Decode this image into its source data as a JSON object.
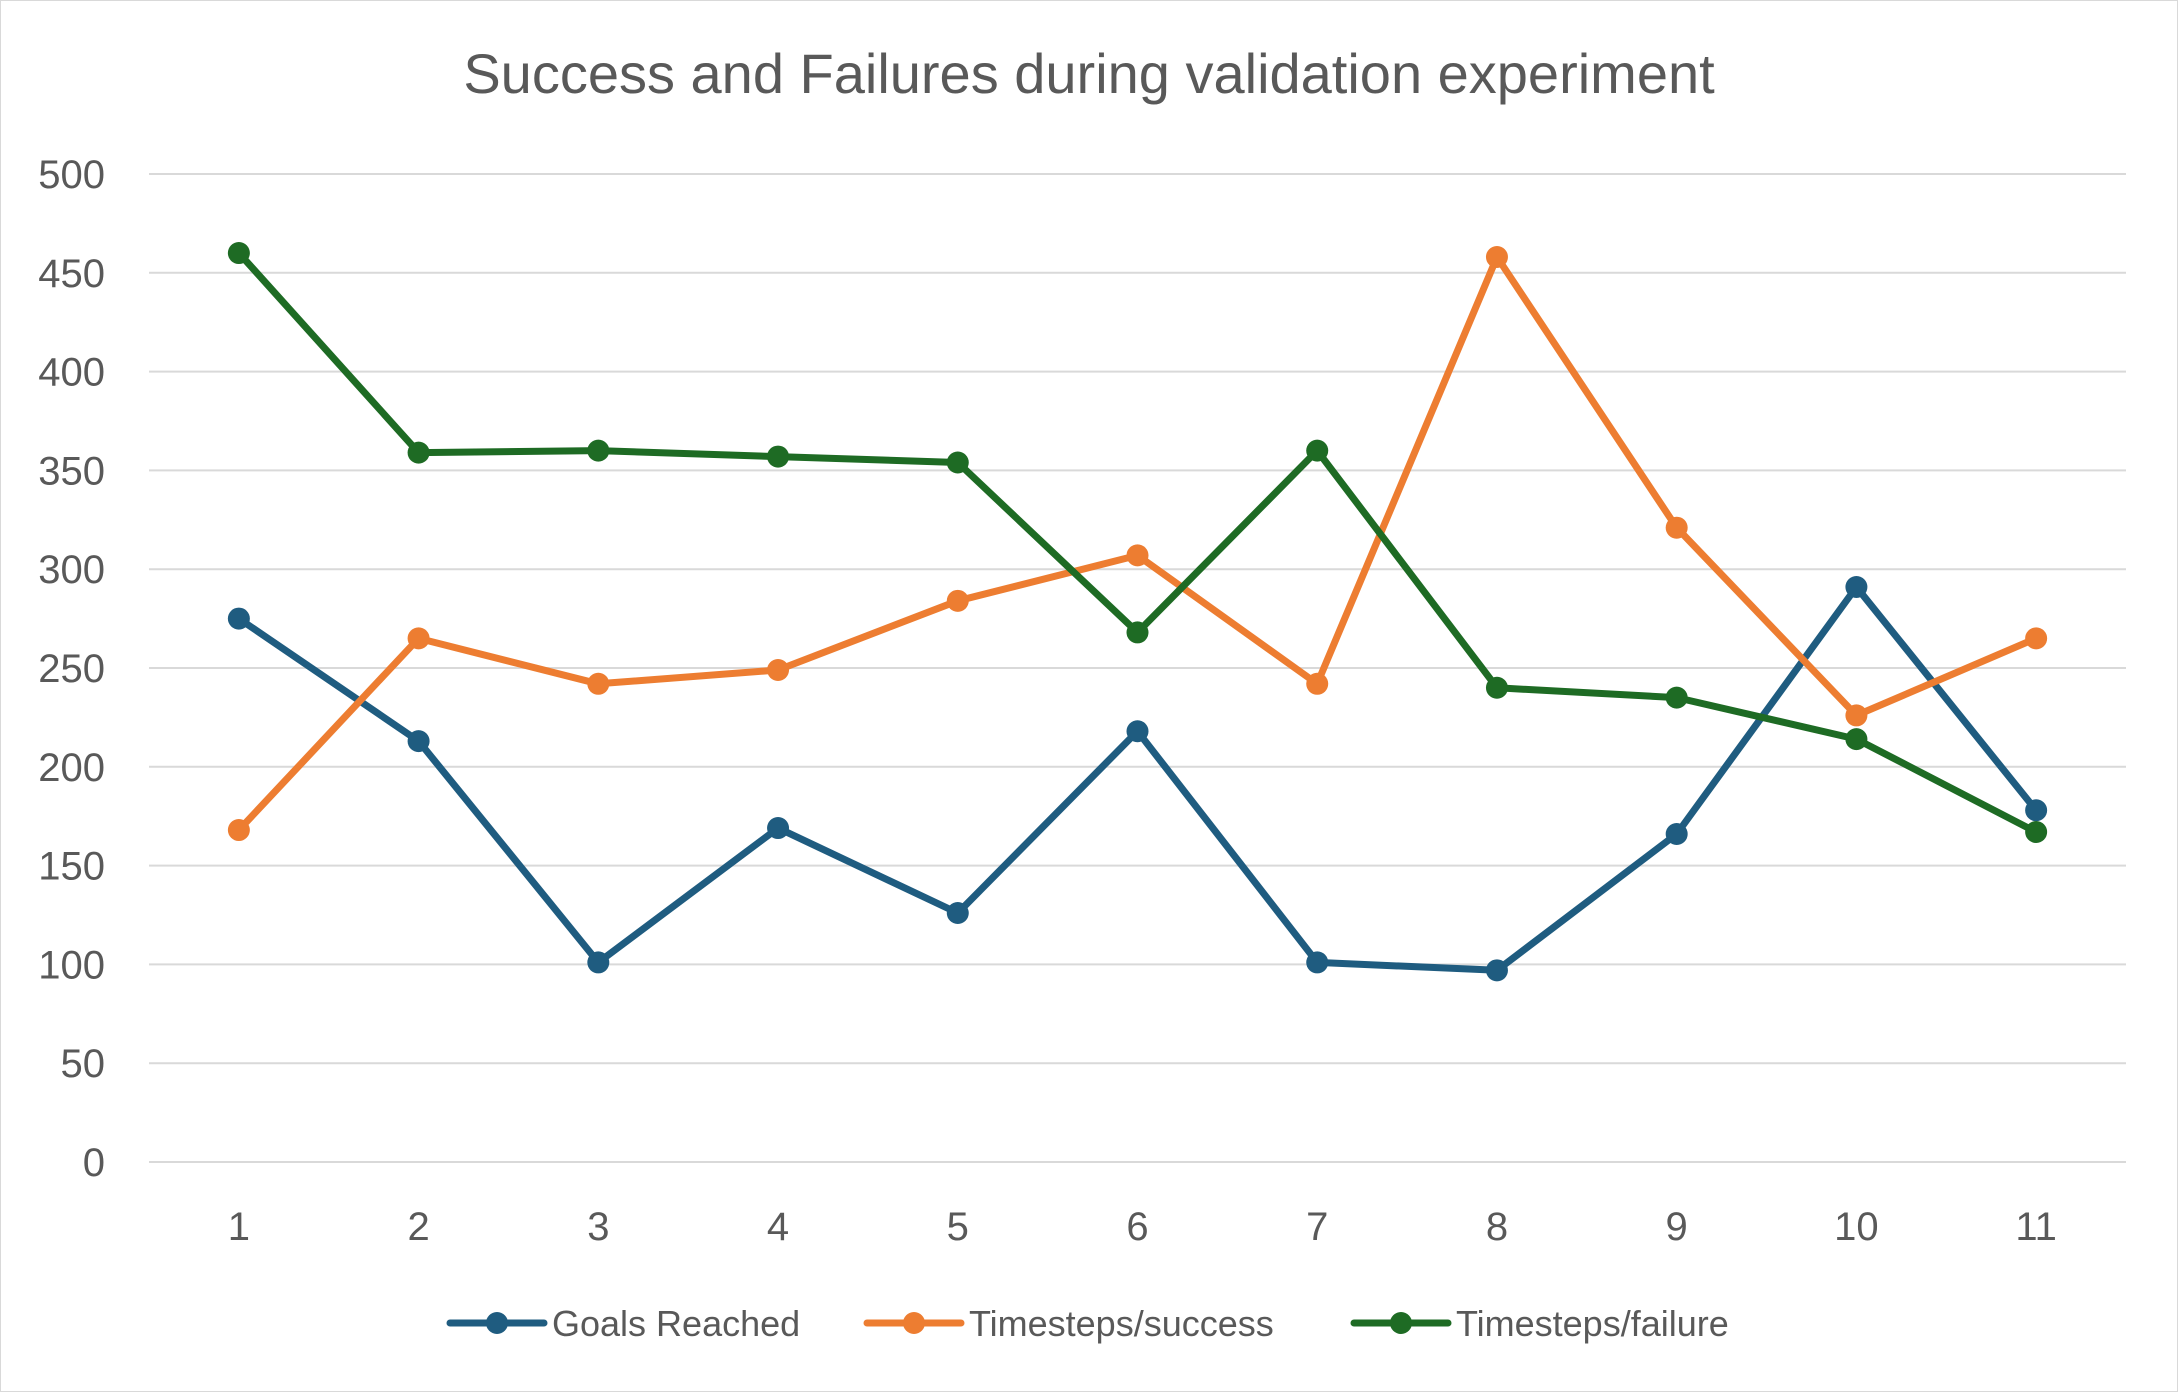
{
  "chart_data": {
    "type": "line",
    "title": "Success and Failures during validation experiment",
    "xlabel": "",
    "ylabel": "",
    "categories": [
      "1",
      "2",
      "3",
      "4",
      "5",
      "6",
      "7",
      "8",
      "9",
      "10",
      "11"
    ],
    "ylim": [
      0,
      500
    ],
    "yticks": [
      0,
      50,
      100,
      150,
      200,
      250,
      300,
      350,
      400,
      450,
      500
    ],
    "grid": true,
    "legend_position": "bottom",
    "series": [
      {
        "name": "Goals Reached",
        "color": "#1f5c80",
        "values": [
          275,
          213,
          101,
          169,
          126,
          218,
          101,
          97,
          166,
          291,
          178
        ]
      },
      {
        "name": "Timesteps/success",
        "color": "#ed7d31",
        "values": [
          168,
          265,
          242,
          249,
          284,
          307,
          242,
          458,
          321,
          226,
          265
        ]
      },
      {
        "name": "Timesteps/failure",
        "color": "#1e6b24",
        "values": [
          460,
          359,
          360,
          357,
          354,
          268,
          360,
          240,
          235,
          214,
          167
        ]
      }
    ]
  }
}
